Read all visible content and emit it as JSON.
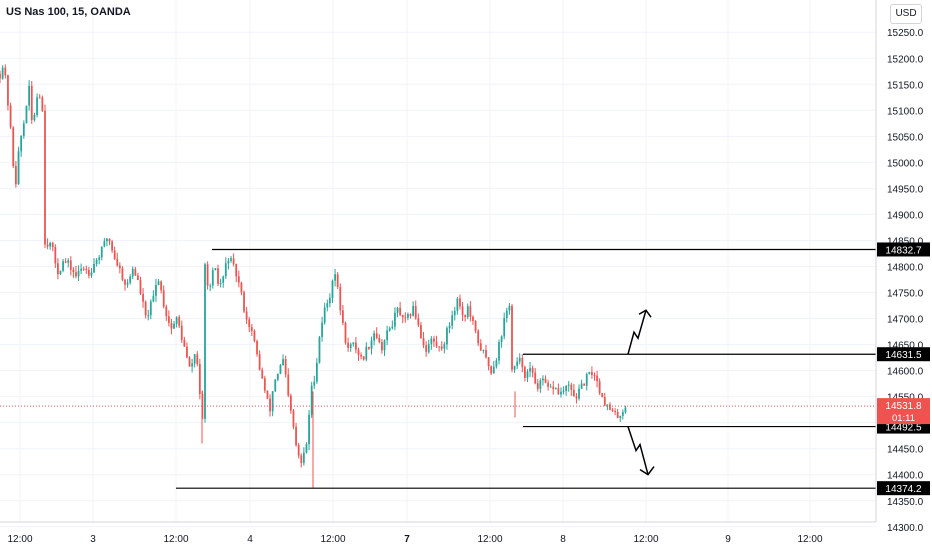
{
  "chart_data": {
    "type": "candlestick",
    "title": "US Nas 100, 15, OANDA",
    "currency": "USD",
    "ylim": [
      14290,
      15285
    ],
    "y_ticks": [
      "15250.0",
      "15200.0",
      "15150.0",
      "15100.0",
      "15050.0",
      "15000.0",
      "14950.0",
      "14900.0",
      "14850.0",
      "14800.0",
      "14750.0",
      "14700.0",
      "14650.0",
      "14600.0",
      "14550.0",
      "14500.0",
      "14450.0",
      "14400.0",
      "14350.0",
      "14300.0"
    ],
    "x_ticks": [
      {
        "label": "12:00",
        "bold": false
      },
      {
        "label": "3",
        "bold": false
      },
      {
        "label": "12:00",
        "bold": false
      },
      {
        "label": "4",
        "bold": false
      },
      {
        "label": "12:00",
        "bold": false
      },
      {
        "label": "7",
        "bold": true
      },
      {
        "label": "12:00",
        "bold": false
      },
      {
        "label": "8",
        "bold": false
      },
      {
        "label": "12:00",
        "bold": false
      },
      {
        "label": "9",
        "bold": false
      },
      {
        "label": "12:00",
        "bold": false
      }
    ],
    "horizontal_levels": [
      {
        "price": 14832.7,
        "label": "14832.7"
      },
      {
        "price": 14631.5,
        "label": "14631.5"
      },
      {
        "price": 14492.5,
        "label": "14492.5"
      },
      {
        "price": 14374.2,
        "label": "14374.2"
      }
    ],
    "current_price": {
      "price": 14531.8,
      "label": "14531.8",
      "countdown": "01:11"
    },
    "scenario_arrows": [
      "up",
      "down"
    ],
    "path": [
      [
        15170,
        15190,
        15140,
        15080,
        15000,
        14960,
        15040,
        15060,
        15110,
        15140,
        15060,
        15120,
        15140,
        15100
      ],
      [
        14850,
        14840,
        14790,
        14810,
        14800,
        14780,
        14800,
        14790,
        14810,
        14830,
        14860,
        14820,
        14790,
        14760,
        14800,
        14760,
        14700,
        14730,
        14780,
        14720,
        14680,
        14700,
        14650,
        14600,
        14640,
        14500
      ],
      [
        14800,
        14750,
        14800,
        14760,
        14780,
        14820,
        14800,
        14780,
        14740,
        14700,
        14680,
        14640,
        14600,
        14560,
        14520,
        14580,
        14600,
        14620,
        14550,
        14500,
        14440,
        14420,
        14460,
        14560,
        14600,
        14680,
        14720,
        14740,
        14800,
        14740,
        14680,
        14640,
        14650,
        14640,
        14620,
        14640,
        14660,
        14680,
        14640,
        14660,
        14680,
        14700,
        14720,
        14690,
        14700,
        14720,
        14700,
        14660,
        14640,
        14660,
        14650,
        14640,
        14660,
        14690,
        14720,
        14740,
        14700,
        14720,
        14690,
        14660,
        14640,
        14620,
        14600,
        14620,
        14660,
        14700,
        14730
      ],
      [
        14600,
        14610,
        14620,
        14590,
        14600,
        14580,
        14570,
        14580,
        14560,
        14570,
        14560,
        14555,
        14570,
        14560,
        14550,
        14560,
        14580,
        14590,
        14600,
        14570,
        14550,
        14530,
        14520,
        14510,
        14520,
        14530
      ]
    ]
  }
}
